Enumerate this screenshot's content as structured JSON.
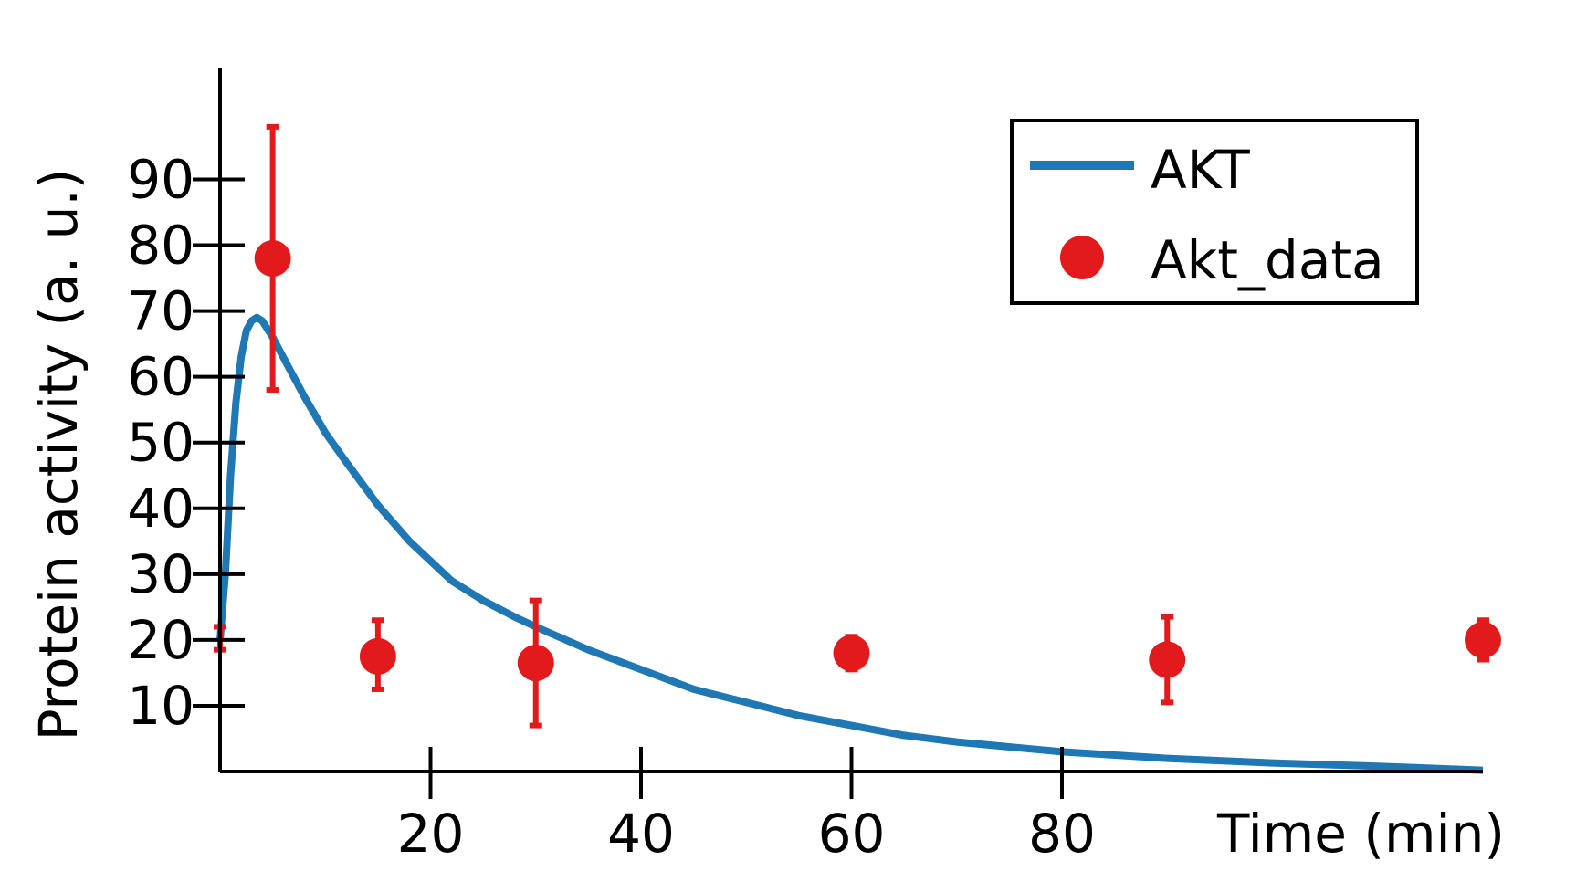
{
  "chart_data": {
    "type": "line",
    "title": "",
    "xlabel": "Time (min)",
    "ylabel": "Protein activity (a. u.)",
    "xlim": [
      0,
      120
    ],
    "ylim": [
      0,
      107
    ],
    "x_ticks": [
      20,
      40,
      60,
      80
    ],
    "x_tick_labels": [
      "20",
      "40",
      "60",
      "80"
    ],
    "y_ticks": [
      10,
      20,
      30,
      40,
      50,
      60,
      70,
      80,
      90
    ],
    "y_tick_labels": [
      "10",
      "20",
      "30",
      "40",
      "50",
      "60",
      "70",
      "80",
      "90"
    ],
    "grid": false,
    "legend_position": "top-right",
    "series": [
      {
        "name": "AKT",
        "kind": "line",
        "color": "#1f77b4",
        "x": [
          0,
          0.5,
          1,
          1.5,
          2,
          2.5,
          3,
          3.5,
          4,
          5,
          6,
          8,
          10,
          12,
          15,
          18,
          20,
          22,
          25,
          28,
          30,
          35,
          40,
          45,
          50,
          55,
          60,
          65,
          70,
          80,
          90,
          100,
          110,
          120
        ],
        "y": [
          20,
          30,
          45,
          56,
          63,
          67,
          68.5,
          69,
          68.5,
          66,
          63,
          57,
          51.5,
          47,
          40.5,
          35,
          32,
          29,
          26,
          23.5,
          22,
          18.5,
          15.5,
          12.5,
          10.5,
          8.5,
          7,
          5.5,
          4.5,
          3,
          2,
          1.3,
          0.8,
          0.2
        ]
      },
      {
        "name": "Akt_data",
        "kind": "scatter",
        "color": "#e31a1c",
        "x": [
          0,
          5,
          15,
          30,
          60,
          90,
          120
        ],
        "y": [
          20,
          78,
          17.5,
          16.5,
          18,
          17,
          20
        ],
        "err_low": [
          18.5,
          58,
          12.5,
          7,
          15.5,
          10.5,
          17
        ],
        "err_high": [
          22,
          98,
          23,
          26,
          20.5,
          23.5,
          23
        ]
      }
    ]
  }
}
